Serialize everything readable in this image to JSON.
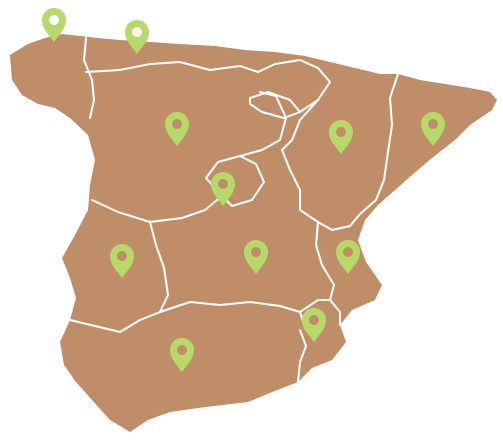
{
  "map": {
    "land_color": "#c08d69",
    "border_color": "#ffffff",
    "marker_color": "#b6d96a",
    "marker_dot_light": "#ffffff",
    "marker_dot_dark": "#c08d69",
    "marker_icon": "map-pin-icon"
  },
  "markers": [
    {
      "id": "galicia-coast",
      "dot": "light"
    },
    {
      "id": "asturias",
      "dot": "light"
    },
    {
      "id": "castilla-leon",
      "dot": "dark"
    },
    {
      "id": "aragon",
      "dot": "dark"
    },
    {
      "id": "catalonia",
      "dot": "dark"
    },
    {
      "id": "madrid",
      "dot": "dark"
    },
    {
      "id": "extremadura",
      "dot": "dark"
    },
    {
      "id": "castilla-la-mancha",
      "dot": "dark"
    },
    {
      "id": "valencia",
      "dot": "dark"
    },
    {
      "id": "murcia",
      "dot": "dark"
    },
    {
      "id": "andalusia",
      "dot": "dark"
    }
  ]
}
